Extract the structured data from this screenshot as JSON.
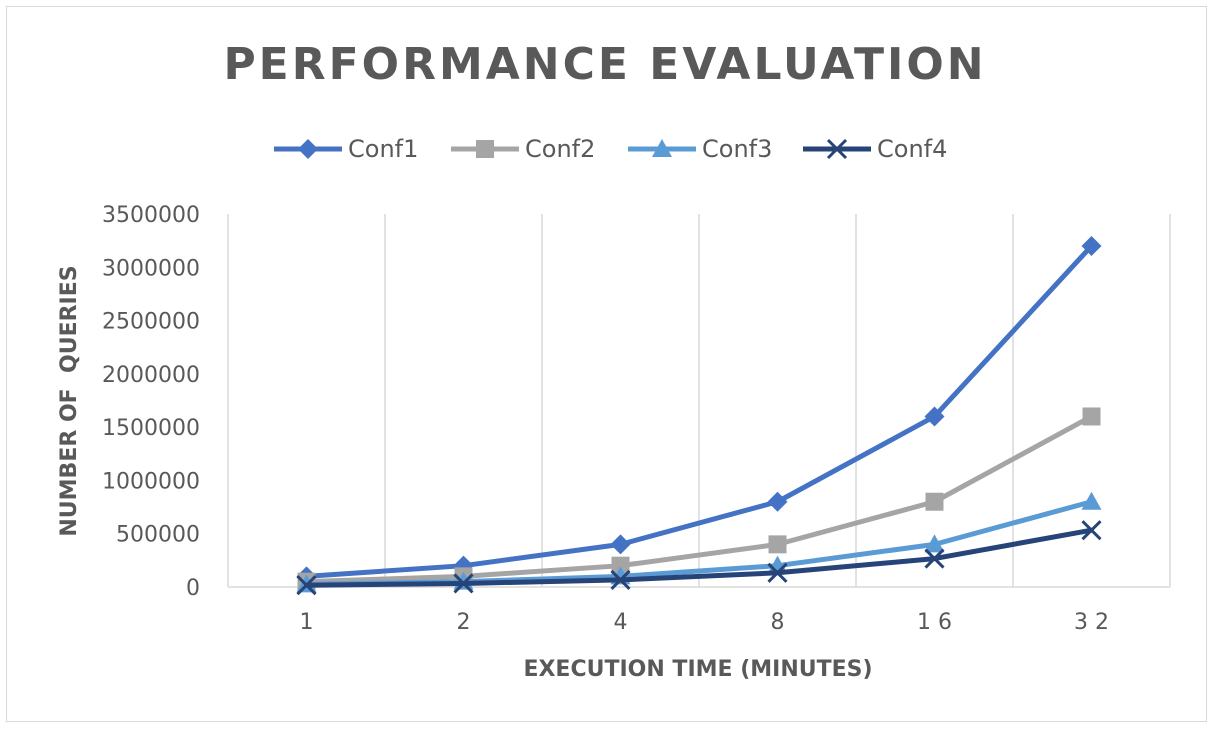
{
  "chart_data": {
    "type": "line",
    "title": "PERFORMANCE EVALUATION",
    "xlabel": "EXECUTION TIME (MINUTES)",
    "ylabel": "NUMBER OF  QUERIES",
    "categories": [
      "1",
      "2",
      "4",
      "8",
      "16",
      "32"
    ],
    "category_labels": [
      "1",
      "2",
      "4",
      "8",
      "1 6",
      "3 2"
    ],
    "ylim": [
      0,
      3500000
    ],
    "y_ticks": [
      0,
      500000,
      1000000,
      1500000,
      2000000,
      2500000,
      3000000,
      3500000
    ],
    "y_tick_labels": [
      "0",
      "500000",
      "1000000",
      "1500000",
      "2000000",
      "2500000",
      "3000000",
      "3500000"
    ],
    "grid": "vertical",
    "legend_position": "top",
    "series": [
      {
        "name": "Conf1",
        "color": "#4472c4",
        "marker": "diamond",
        "values": [
          100000,
          200000,
          400000,
          800000,
          1600000,
          3200000
        ]
      },
      {
        "name": "Conf2",
        "color": "#a5a5a5",
        "marker": "square",
        "values": [
          50000,
          100000,
          200000,
          400000,
          800000,
          1600000
        ]
      },
      {
        "name": "Conf3",
        "color": "#5b9bd5",
        "marker": "triangle",
        "values": [
          25000,
          50000,
          100000,
          200000,
          400000,
          800000
        ]
      },
      {
        "name": "Conf4",
        "color": "#264478",
        "marker": "x",
        "values": [
          16667,
          33333,
          66667,
          133333,
          266667,
          533333
        ]
      }
    ]
  }
}
